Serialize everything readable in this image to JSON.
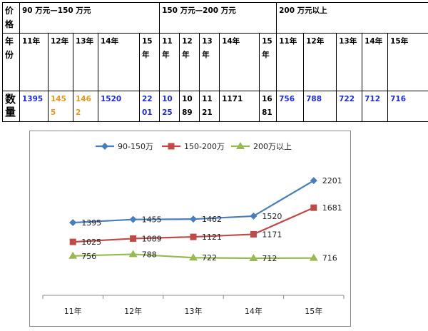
{
  "table": {
    "price_head": "价格",
    "year_head": "年份",
    "qty_head": "数量",
    "groups": [
      {
        "label": "90 万元—150 万元"
      },
      {
        "label": "150 万元—200 万元"
      },
      {
        "label": "200 万元以上"
      }
    ],
    "years": [
      "11年",
      "12年",
      "13年",
      "14年",
      "15年",
      "11年",
      "12年",
      "13年",
      "14年",
      "15年",
      "11年",
      "12年",
      "13年",
      "14年",
      "15年"
    ],
    "quantities": [
      {
        "text": "1395",
        "color": "#1f2bd6"
      },
      {
        "text": "1455",
        "color": "#e8961e"
      },
      {
        "text": "1462",
        "color": "#e8961e"
      },
      {
        "text": "1520",
        "color": "#1f2bd6"
      },
      {
        "text": "2201",
        "color": "#1f2bd6"
      },
      {
        "text": "1025",
        "color": "#1f2bd6"
      },
      {
        "text": "1089",
        "color": "#000000"
      },
      {
        "text": "1121",
        "color": "#000000"
      },
      {
        "text": "1171",
        "color": "#000000"
      },
      {
        "text": "1681",
        "color": "#000000"
      },
      {
        "text": "756",
        "color": "#1f2bd6"
      },
      {
        "text": "788",
        "color": "#1f2bd6"
      },
      {
        "text": "722",
        "color": "#1f2bd6"
      },
      {
        "text": "712",
        "color": "#1f2bd6"
      },
      {
        "text": "716",
        "color": "#1f2bd6"
      }
    ]
  },
  "chart_data": {
    "type": "line",
    "x": [
      "11年",
      "12年",
      "13年",
      "14年",
      "15年"
    ],
    "ylim": [
      0,
      2600
    ],
    "grid": false,
    "legend_position": "top",
    "series": [
      {
        "name": "90-150万",
        "values": [
          1395,
          1455,
          1462,
          1520,
          2201
        ],
        "color": "#4a7ebb",
        "marker": "diamond"
      },
      {
        "name": "150-200万",
        "values": [
          1025,
          1089,
          1121,
          1171,
          1681
        ],
        "color": "#be4b48",
        "marker": "square"
      },
      {
        "name": "200万以上",
        "values": [
          756,
          788,
          722,
          712,
          716
        ],
        "color": "#98b954",
        "marker": "triangle"
      }
    ]
  }
}
